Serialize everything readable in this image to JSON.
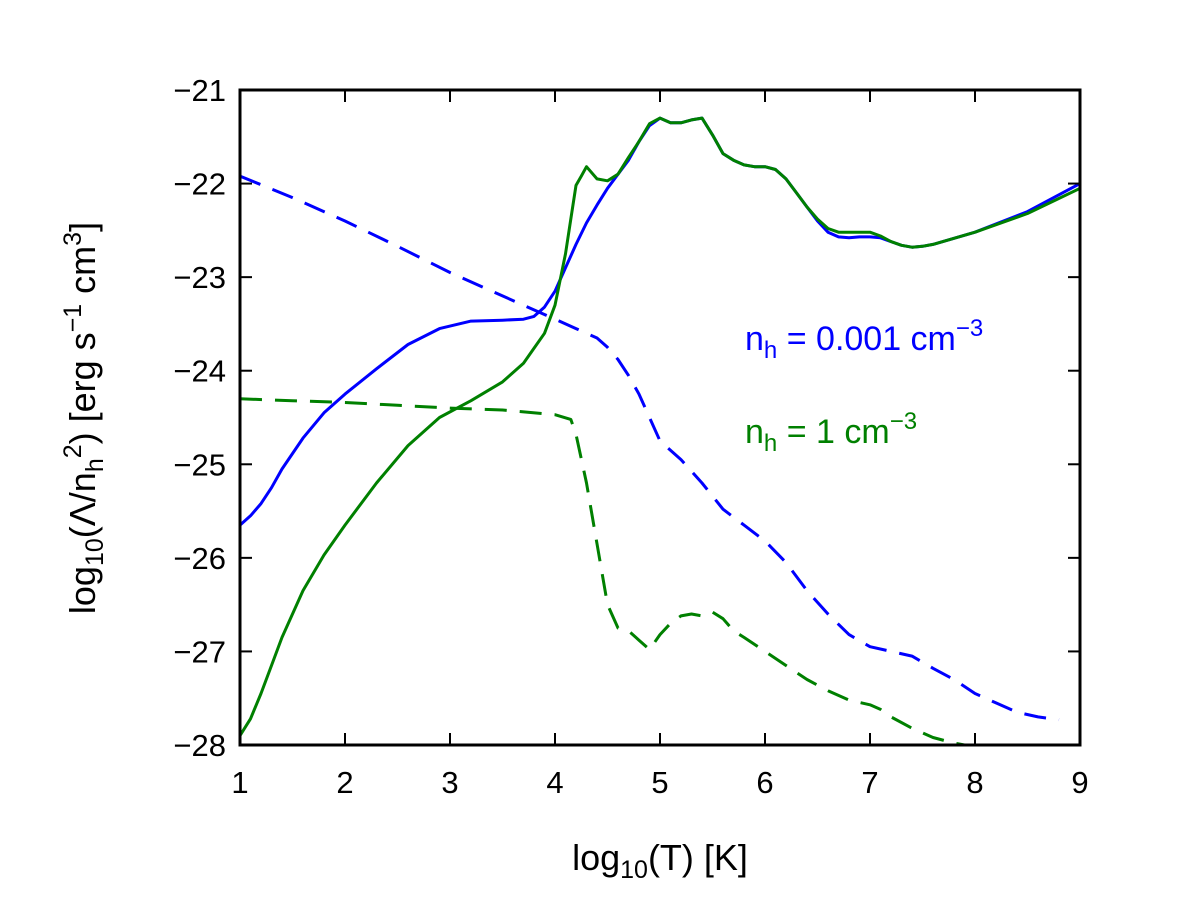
{
  "chart_data": {
    "type": "line",
    "title": "",
    "xlabel": "log10(T) [K]",
    "ylabel": "log10(Λ/n_h^2) [erg s^-1 cm^3]",
    "xlim": [
      1,
      9
    ],
    "ylim": [
      -28,
      -21
    ],
    "grid": false,
    "xticks": [
      1,
      2,
      3,
      4,
      5,
      6,
      7,
      8,
      9
    ],
    "yticks": [
      -28,
      -27,
      -26,
      -25,
      -24,
      -23,
      -22,
      -21
    ],
    "legend": {
      "placement": "right",
      "entries": [
        {
          "label": "n_h = 0.001 cm^-3",
          "color": "#0000ff"
        },
        {
          "label": "n_h = 1 cm^-3",
          "color": "#008000"
        }
      ]
    },
    "series": [
      {
        "name": "n_h = 0.001 cm^-3 solid",
        "color": "#0000ff",
        "style": "solid",
        "x": [
          1.0,
          1.1,
          1.2,
          1.3,
          1.4,
          1.6,
          1.8,
          2.0,
          2.3,
          2.6,
          2.9,
          3.2,
          3.5,
          3.7,
          3.8,
          3.9,
          4.0,
          4.1,
          4.2,
          4.3,
          4.4,
          4.5,
          4.6,
          4.7,
          4.8,
          4.9,
          5.0,
          5.1,
          5.2,
          5.3,
          5.4,
          5.5,
          5.6,
          5.7,
          5.8,
          5.9,
          6.0,
          6.1,
          6.2,
          6.3,
          6.4,
          6.5,
          6.6,
          6.7,
          6.8,
          6.9,
          7.0,
          7.1,
          7.2,
          7.3,
          7.4,
          7.5,
          7.6,
          8.0,
          8.5,
          9.0
        ],
        "y": [
          -25.65,
          -25.55,
          -25.42,
          -25.25,
          -25.05,
          -24.72,
          -24.45,
          -24.25,
          -23.98,
          -23.72,
          -23.55,
          -23.47,
          -23.46,
          -23.45,
          -23.42,
          -23.32,
          -23.15,
          -22.9,
          -22.65,
          -22.42,
          -22.23,
          -22.05,
          -21.9,
          -21.75,
          -21.55,
          -21.38,
          -21.3,
          -21.35,
          -21.35,
          -21.32,
          -21.3,
          -21.48,
          -21.68,
          -21.75,
          -21.8,
          -21.82,
          -21.82,
          -21.85,
          -21.95,
          -22.1,
          -22.25,
          -22.4,
          -22.52,
          -22.57,
          -22.58,
          -22.57,
          -22.57,
          -22.58,
          -22.62,
          -22.66,
          -22.68,
          -22.67,
          -22.65,
          -22.52,
          -22.3,
          -22.0
        ]
      },
      {
        "name": "n_h = 1 cm^-3 solid",
        "color": "#008000",
        "style": "solid",
        "x": [
          1.0,
          1.1,
          1.2,
          1.3,
          1.4,
          1.6,
          1.8,
          2.0,
          2.3,
          2.6,
          2.9,
          3.2,
          3.5,
          3.7,
          3.8,
          3.9,
          4.0,
          4.1,
          4.15,
          4.2,
          4.25,
          4.3,
          4.4,
          4.5,
          4.6,
          4.7,
          4.8,
          4.9,
          5.0,
          5.1,
          5.2,
          5.3,
          5.4,
          5.5,
          5.6,
          5.7,
          5.8,
          5.9,
          6.0,
          6.1,
          6.2,
          6.3,
          6.4,
          6.5,
          6.6,
          6.7,
          6.8,
          6.9,
          7.0,
          7.1,
          7.2,
          7.3,
          7.4,
          7.5,
          7.6,
          8.0,
          8.5,
          9.0
        ],
        "y": [
          -27.9,
          -27.72,
          -27.45,
          -27.15,
          -26.85,
          -26.35,
          -25.97,
          -25.65,
          -25.2,
          -24.8,
          -24.5,
          -24.32,
          -24.12,
          -23.92,
          -23.76,
          -23.6,
          -23.3,
          -22.75,
          -22.38,
          -22.02,
          -21.92,
          -21.82,
          -21.95,
          -21.97,
          -21.9,
          -21.72,
          -21.55,
          -21.36,
          -21.3,
          -21.35,
          -21.35,
          -21.32,
          -21.3,
          -21.48,
          -21.68,
          -21.75,
          -21.8,
          -21.82,
          -21.82,
          -21.85,
          -21.95,
          -22.1,
          -22.25,
          -22.38,
          -22.48,
          -22.52,
          -22.52,
          -22.52,
          -22.52,
          -22.56,
          -22.62,
          -22.66,
          -22.68,
          -22.67,
          -22.65,
          -22.52,
          -22.32,
          -22.05
        ]
      },
      {
        "name": "n_h = 0.001 cm^-3 dashed",
        "color": "#0000ff",
        "style": "dashed",
        "x": [
          1.0,
          1.5,
          2.0,
          2.5,
          3.0,
          3.5,
          4.0,
          4.2,
          4.4,
          4.5,
          4.6,
          4.7,
          4.8,
          4.9,
          5.0,
          5.2,
          5.4,
          5.6,
          5.8,
          6.0,
          6.2,
          6.4,
          6.6,
          6.8,
          7.0,
          7.2,
          7.4,
          7.6,
          7.8,
          8.0,
          8.2,
          8.4,
          8.6,
          8.8
        ],
        "y": [
          -21.92,
          -22.15,
          -22.4,
          -22.67,
          -22.95,
          -23.2,
          -23.45,
          -23.55,
          -23.65,
          -23.75,
          -23.88,
          -24.05,
          -24.25,
          -24.5,
          -24.75,
          -24.95,
          -25.2,
          -25.48,
          -25.65,
          -25.82,
          -26.05,
          -26.35,
          -26.6,
          -26.82,
          -26.95,
          -27.0,
          -27.05,
          -27.18,
          -27.3,
          -27.45,
          -27.55,
          -27.65,
          -27.7,
          -27.73
        ]
      },
      {
        "name": "n_h = 1 cm^-3 dashed",
        "color": "#008000",
        "style": "dashed",
        "x": [
          1.0,
          1.5,
          2.0,
          2.5,
          3.0,
          3.5,
          4.0,
          4.15,
          4.2,
          4.3,
          4.4,
          4.5,
          4.6,
          4.7,
          4.8,
          4.9,
          5.0,
          5.1,
          5.2,
          5.3,
          5.4,
          5.5,
          5.6,
          5.7,
          5.8,
          6.0,
          6.2,
          6.4,
          6.6,
          6.8,
          7.0,
          7.1,
          7.2,
          7.4,
          7.6,
          7.8,
          7.9
        ],
        "y": [
          -24.3,
          -24.32,
          -24.34,
          -24.37,
          -24.4,
          -24.42,
          -24.47,
          -24.52,
          -24.68,
          -25.2,
          -25.85,
          -26.5,
          -26.75,
          -26.78,
          -26.88,
          -26.98,
          -26.82,
          -26.7,
          -26.62,
          -26.6,
          -26.62,
          -26.58,
          -26.65,
          -26.78,
          -26.85,
          -27.0,
          -27.15,
          -27.3,
          -27.42,
          -27.52,
          -27.57,
          -27.62,
          -27.7,
          -27.82,
          -27.92,
          -27.98,
          -28.0
        ]
      }
    ]
  }
}
